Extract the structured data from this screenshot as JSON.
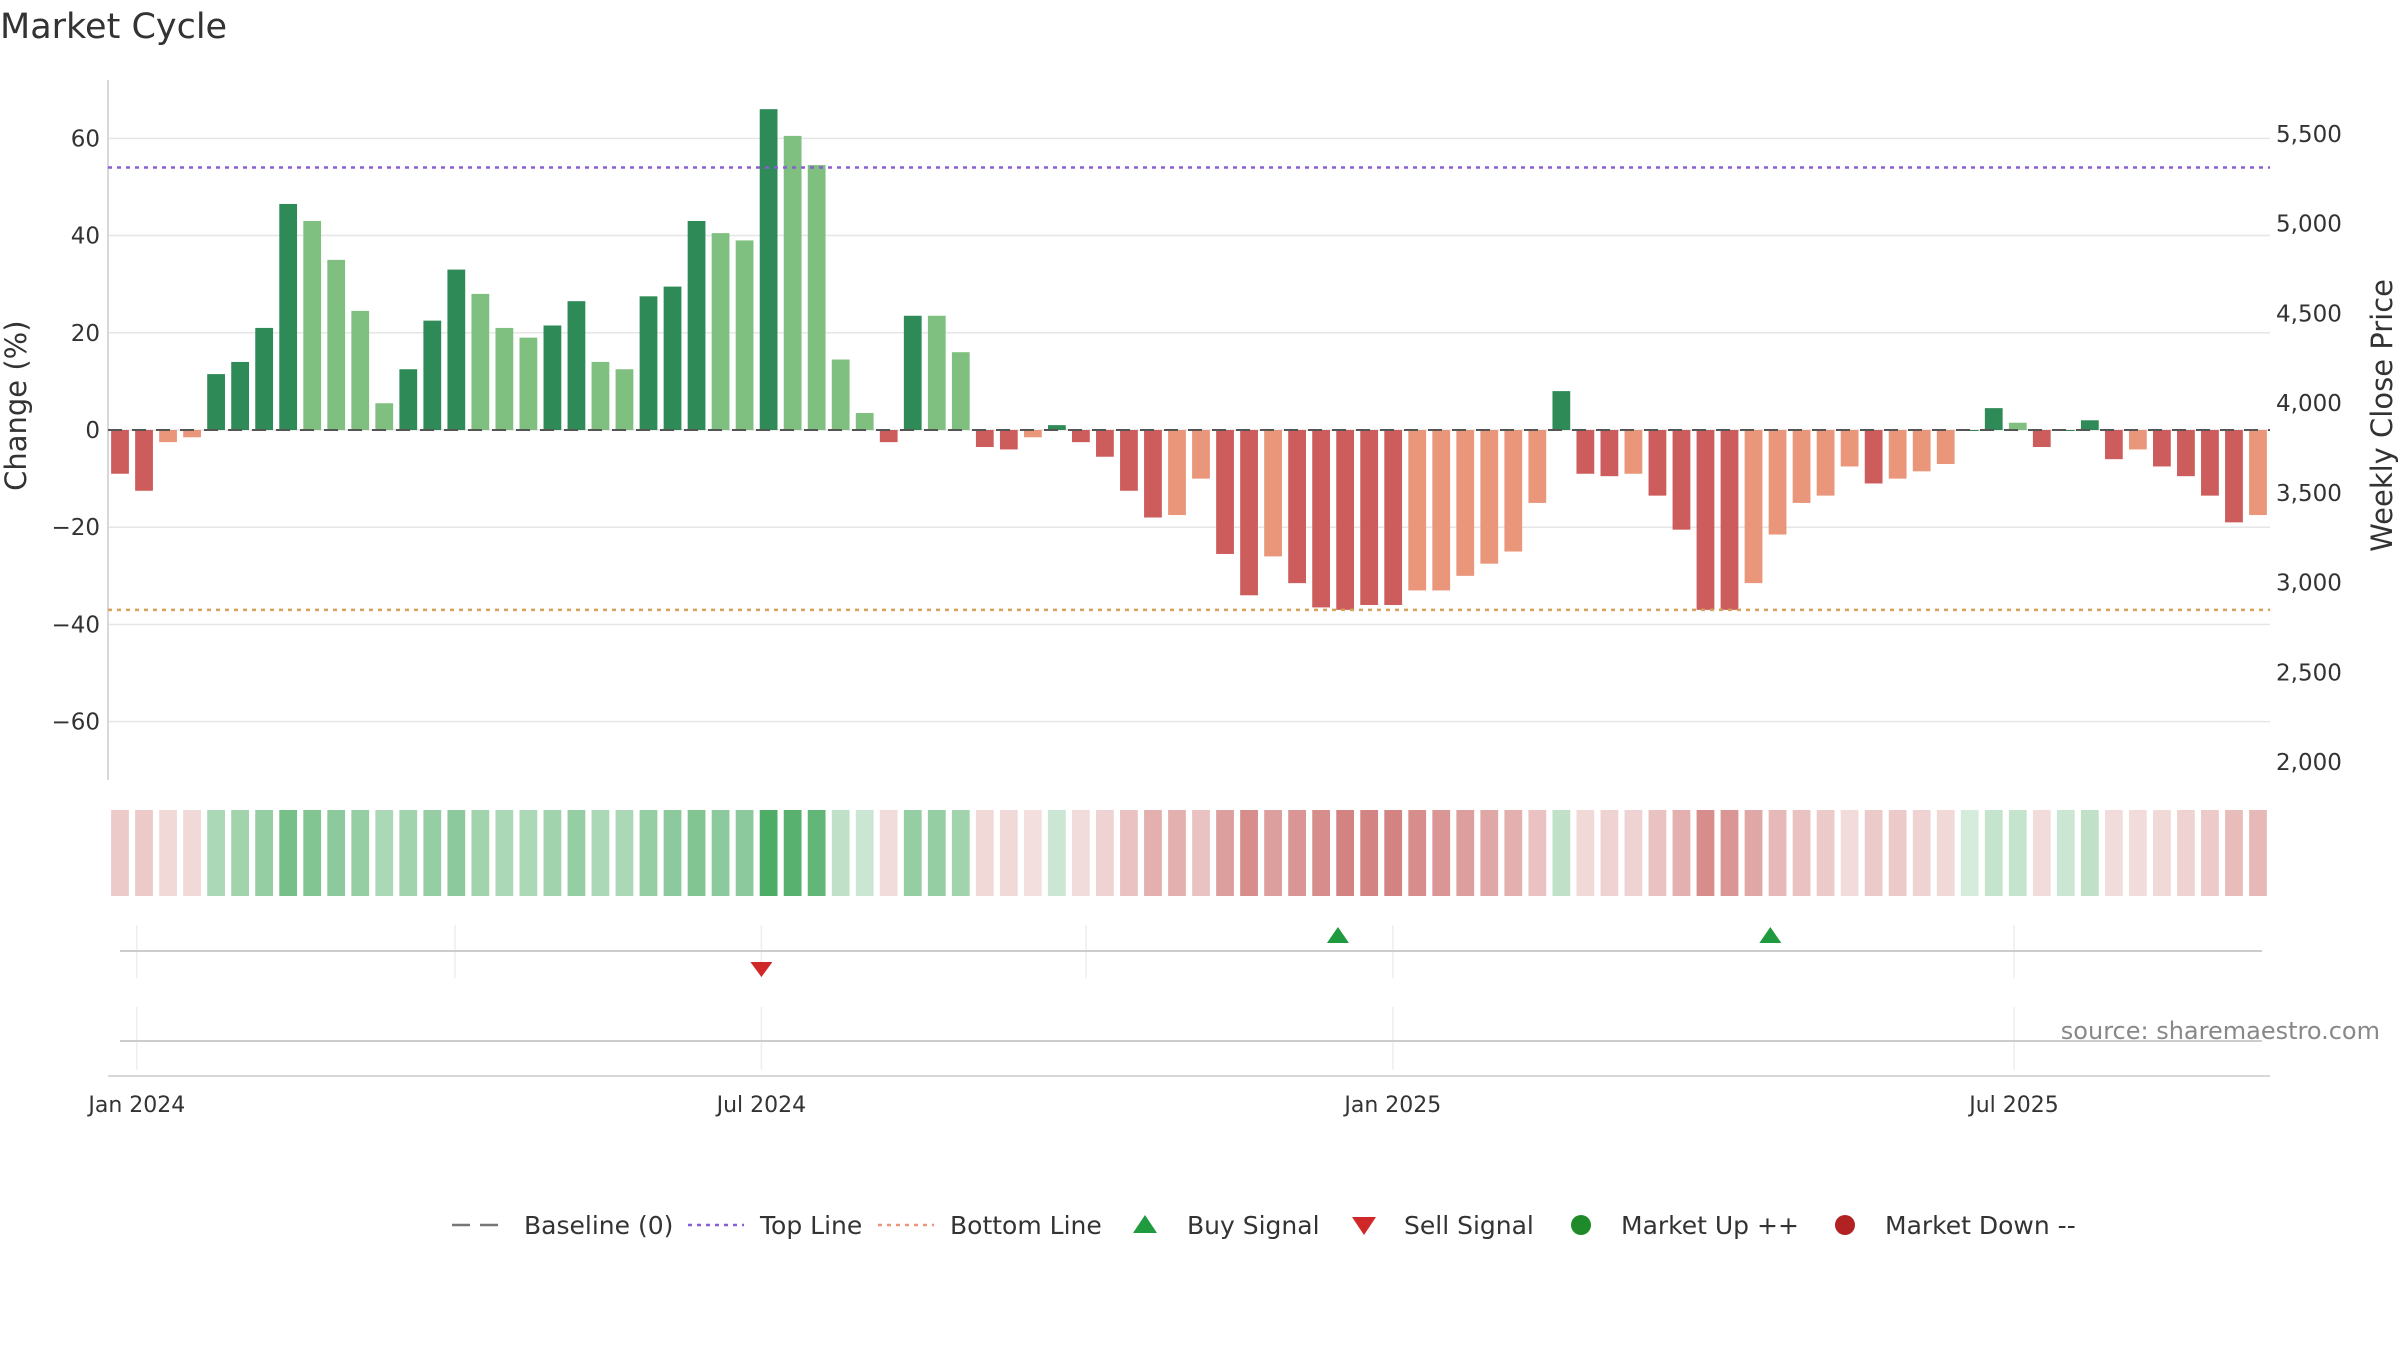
{
  "title": "Market Cycle",
  "source": "source: sharemaestro.com",
  "colors": {
    "up_strong": "#2e8b57",
    "up_weak": "#7fbf7f",
    "down_strong": "#cd5c5c",
    "down_weak": "#e9967a",
    "top_line": "#8a5ed3",
    "bottom_line": "#d4a05a",
    "buy": "#1f9a3f",
    "sell": "#d02828",
    "market_up": "#1f8a2a",
    "market_down": "#b22222",
    "grid": "#e6e6e6",
    "axis": "#cccccc"
  },
  "legend": [
    {
      "key": "baseline",
      "label": "Baseline (0)",
      "symbol": "dash",
      "color": "#777777"
    },
    {
      "key": "top",
      "label": "Top Line",
      "symbol": "dotted",
      "color": "#8a5ed3"
    },
    {
      "key": "bottom",
      "label": "Bottom Line",
      "symbol": "dotted",
      "color": "#e9967a"
    },
    {
      "key": "buy",
      "label": "Buy Signal",
      "symbol": "triangle-up",
      "color": "#1f9a3f"
    },
    {
      "key": "sell",
      "label": "Sell Signal",
      "symbol": "triangle-down",
      "color": "#d02828"
    },
    {
      "key": "mup",
      "label": "Market Up ++",
      "symbol": "circle",
      "color": "#1f8a2a"
    },
    {
      "key": "mdown",
      "label": "Market Down --",
      "symbol": "circle",
      "color": "#b22222"
    }
  ],
  "chart_data": {
    "type": "bar",
    "title": "Market Cycle",
    "ylabel": "Change (%)",
    "ylabel_right": "Weekly Close Price",
    "ylim": [
      -72,
      72
    ],
    "ylim_right": [
      1900,
      5800
    ],
    "yticks": [
      60,
      40,
      20,
      0,
      -20,
      -40,
      -60
    ],
    "ytick_labels": [
      "60",
      "40",
      "20",
      "0",
      "−20",
      "−40",
      "−60"
    ],
    "yticks_right": [
      5500,
      5000,
      4500,
      4000,
      3500,
      3000,
      2500,
      2000
    ],
    "ytick_labels_right": [
      "5,500",
      "5,000",
      "4,500",
      "4,000",
      "3,500",
      "3,000",
      "2,500",
      "2,000"
    ],
    "x_start": "2023-12-25",
    "x_ticks": [
      {
        "date": "2024-01-01",
        "label": "Jan 2024"
      },
      {
        "date": "2024-07-01",
        "label": "Jul 2024"
      },
      {
        "date": "2025-01-01",
        "label": "Jan 2025"
      },
      {
        "date": "2025-07-01",
        "label": "Jul 2025"
      }
    ],
    "top_line": 54,
    "bottom_line": -37,
    "values": [
      -9,
      -12.5,
      -2.5,
      -1.5,
      11.5,
      14,
      21,
      46.5,
      43,
      35,
      24.5,
      5.5,
      12.5,
      22.5,
      33,
      28,
      21,
      19,
      21.5,
      26.5,
      14,
      12.5,
      27.5,
      29.5,
      43,
      40.5,
      39,
      66,
      60.5,
      54.5,
      14.5,
      3.5,
      -2.5,
      23.5,
      23.5,
      16,
      -3.5,
      -4,
      -1.5,
      1,
      -2.5,
      -5.5,
      -12.5,
      -18,
      -17.5,
      -10,
      -25.5,
      -34,
      -26,
      -31.5,
      -36.5,
      -37,
      -36,
      -36,
      -33,
      -33,
      -30,
      -27.5,
      -25,
      -15,
      8,
      -9,
      -9.5,
      -9,
      -13.5,
      -20.5,
      -37,
      -37,
      -31.5,
      -21.5,
      -15,
      -13.5,
      -7.5,
      -11,
      -10,
      -8.5,
      -7,
      0,
      4.5,
      1.5,
      -3.5,
      0,
      2,
      -6,
      -4,
      -7.5,
      -9.5,
      -13.5,
      -19,
      -17.5
    ],
    "shade": [
      "s",
      "s",
      "w",
      "w",
      "s",
      "s",
      "s",
      "s",
      "w",
      "w",
      "w",
      "w",
      "s",
      "s",
      "s",
      "w",
      "w",
      "w",
      "s",
      "s",
      "w",
      "w",
      "s",
      "s",
      "s",
      "w",
      "w",
      "s",
      "w",
      "w",
      "w",
      "w",
      "s",
      "s",
      "w",
      "w",
      "s",
      "s",
      "w",
      "s",
      "s",
      "s",
      "s",
      "s",
      "w",
      "w",
      "s",
      "s",
      "w",
      "s",
      "s",
      "s",
      "s",
      "s",
      "w",
      "w",
      "w",
      "w",
      "w",
      "w",
      "s",
      "s",
      "s",
      "w",
      "s",
      "s",
      "s",
      "s",
      "w",
      "w",
      "w",
      "w",
      "w",
      "s",
      "w",
      "w",
      "w",
      "s",
      "s",
      "w",
      "s",
      "s",
      "s",
      "s",
      "w",
      "s",
      "s",
      "s",
      "s",
      "w"
    ],
    "strip": [
      0.3,
      0.3,
      0.22,
      0.22,
      0.4,
      0.45,
      0.5,
      0.65,
      0.6,
      0.55,
      0.5,
      0.4,
      0.45,
      0.5,
      0.55,
      0.45,
      0.4,
      0.4,
      0.45,
      0.5,
      0.4,
      0.4,
      0.5,
      0.55,
      0.6,
      0.55,
      0.55,
      0.85,
      0.8,
      0.75,
      0.3,
      0.25,
      0.2,
      0.5,
      0.5,
      0.45,
      0.22,
      0.22,
      0.18,
      0.25,
      0.2,
      0.25,
      0.35,
      0.45,
      0.45,
      0.35,
      0.55,
      0.65,
      0.55,
      0.6,
      0.65,
      0.7,
      0.7,
      0.7,
      0.65,
      0.6,
      0.55,
      0.5,
      0.45,
      0.35,
      0.3,
      0.22,
      0.25,
      0.25,
      0.35,
      0.45,
      0.65,
      0.6,
      0.5,
      0.4,
      0.35,
      0.3,
      0.2,
      0.3,
      0.3,
      0.25,
      0.22,
      0.2,
      0.28,
      0.28,
      0.2,
      0.25,
      0.3,
      0.2,
      0.2,
      0.22,
      0.25,
      0.3,
      0.38,
      0.4
    ],
    "buy_signals": [
      "2024-12-16",
      "2025-04-21"
    ],
    "sell_signals": [
      "2024-07-01"
    ]
  }
}
